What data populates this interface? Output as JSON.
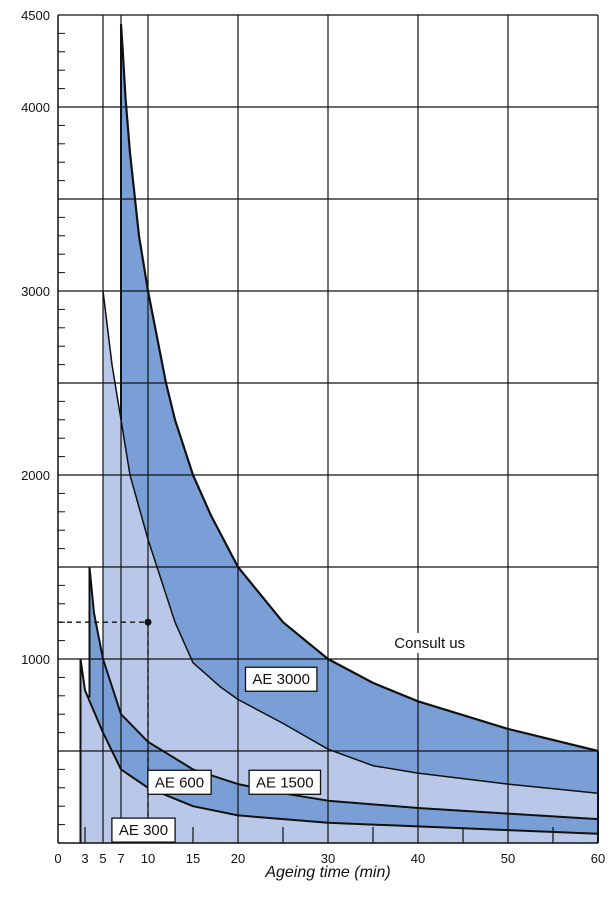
{
  "chart_data": {
    "type": "area",
    "xlabel": "Ageing time (min)",
    "ylabel": "",
    "xlim": [
      0,
      60
    ],
    "ylim": [
      0,
      4500
    ],
    "x_ticks": [
      0,
      3,
      5,
      7,
      10,
      15,
      20,
      30,
      40,
      50,
      60
    ],
    "y_tick_labels": [
      1000,
      2000,
      3000,
      4000,
      4500
    ],
    "y_gridlines": [
      500,
      1000,
      1500,
      2000,
      2500,
      3000,
      3500,
      4000,
      4500
    ],
    "x_gridlines": [
      5,
      7,
      10,
      20,
      30,
      40,
      50,
      60
    ],
    "grid": true,
    "colors": {
      "light": "#b9c8e8",
      "dark": "#7a9fd6",
      "line": "#111111"
    },
    "series": [
      {
        "name": "AE 300",
        "x": [
          2.5,
          3,
          5,
          7,
          10,
          15,
          20,
          30,
          40,
          50,
          60
        ],
        "y": [
          1000,
          830,
          600,
          400,
          300,
          200,
          150,
          110,
          90,
          70,
          50
        ]
      },
      {
        "name": "AE 600",
        "x": [
          3.5,
          4,
          5,
          7,
          10,
          15,
          20,
          25,
          30,
          40,
          50,
          60
        ],
        "y": [
          1500,
          1250,
          1000,
          700,
          550,
          400,
          320,
          270,
          230,
          190,
          160,
          130
        ]
      },
      {
        "name": "AE 1500",
        "x": [
          5,
          6,
          7,
          8,
          10,
          13,
          15,
          18,
          20,
          25,
          30,
          35,
          40,
          50,
          60
        ],
        "y": [
          3000,
          2600,
          2300,
          2000,
          1650,
          1200,
          980,
          850,
          780,
          650,
          510,
          420,
          380,
          320,
          270
        ]
      },
      {
        "name": "AE 3000",
        "x": [
          7,
          7.2,
          7.5,
          8,
          9,
          10,
          11,
          12,
          13,
          15,
          17,
          20,
          25,
          30,
          35,
          40,
          50,
          60
        ],
        "y": [
          4450,
          4300,
          4050,
          3750,
          3300,
          3000,
          2750,
          2500,
          2300,
          2000,
          1780,
          1500,
          1200,
          1000,
          870,
          770,
          620,
          500
        ]
      }
    ],
    "region_labels": [
      {
        "text": "AE 300",
        "x": 9.5,
        "y": 70
      },
      {
        "text": "AE 600",
        "x": 13.5,
        "y": 330
      },
      {
        "text": "AE 1500",
        "x": 25.2,
        "y": 330
      },
      {
        "text": "AE 3000",
        "x": 24.8,
        "y": 890
      }
    ],
    "annotations": [
      {
        "text": "Consult us",
        "x": 41.3,
        "y": 1060
      }
    ],
    "example_point": {
      "x": 10,
      "y": 1200
    }
  }
}
